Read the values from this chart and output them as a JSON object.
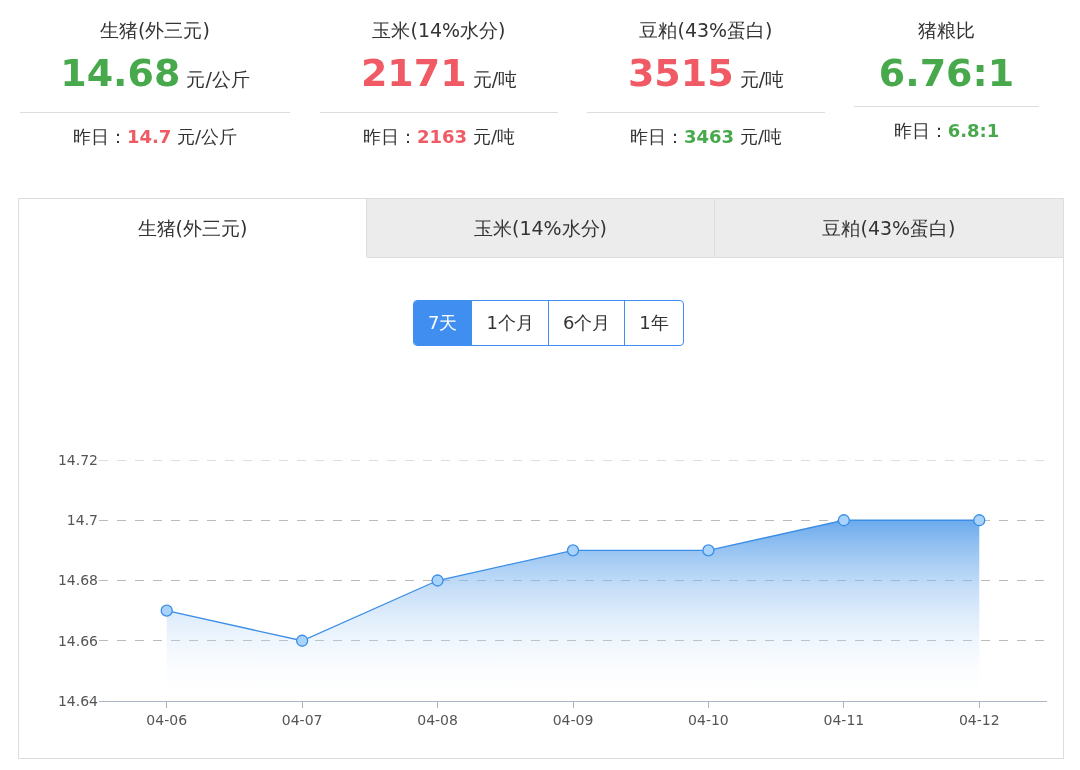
{
  "chart_data": {
    "type": "area",
    "categories": [
      "04-06",
      "04-07",
      "04-08",
      "04-09",
      "04-10",
      "04-11",
      "04-12"
    ],
    "series": [
      {
        "color": "#3a8ee6",
        "values": [
          14.67,
          14.66,
          14.68,
          14.69,
          14.69,
          14.7,
          14.7
        ]
      }
    ],
    "ylim": [
      14.64,
      14.72
    ],
    "yticks": [
      14.64,
      14.66,
      14.68,
      14.7,
      14.72
    ],
    "grid": "y",
    "marker": "circle",
    "line_style": "solid",
    "annotations": [
      "生猪(外三元)",
      "14.68",
      "元/公斤",
      "昨日：",
      "14.7",
      "元/公斤",
      "玉米(14%水分)",
      "2171",
      "元/吨",
      "昨日：",
      "2163",
      "元/吨",
      "豆粕(43%蛋白)",
      "3515",
      "元/吨",
      "昨日：",
      "3463",
      "元/吨",
      "猪粮比",
      "6.76:1",
      null,
      "昨日：",
      "6.8:1",
      null,
      "生猪(外三元)",
      "玉米(14%水分)",
      "豆粕(43%蛋白)",
      "7天",
      "1个月",
      "6个月",
      "1年"
    ]
  }
}
